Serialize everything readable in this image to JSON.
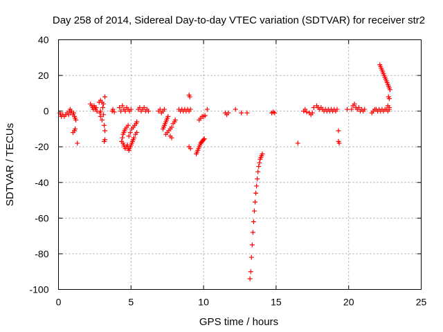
{
  "chart_data": {
    "type": "scatter",
    "title": "Day 258 of 2014, Sidereal Day-to-day VTEC variation (SDTVAR) for receiver str2",
    "xlabel": "GPS time / hours",
    "ylabel": "SDTVAR / TECUs",
    "xlim": [
      0,
      25
    ],
    "ylim": [
      -100,
      40
    ],
    "xticks": [
      0,
      5,
      10,
      15,
      20,
      25
    ],
    "yticks": [
      -100,
      -80,
      -60,
      -40,
      -20,
      0,
      20,
      40
    ],
    "grid": true,
    "marker": "plus",
    "color": "#ff0000",
    "series": [
      {
        "points": [
          [
            0.1,
            -1
          ],
          [
            0.15,
            -2
          ],
          [
            0.2,
            -3
          ],
          [
            0.3,
            -2
          ],
          [
            0.4,
            -3
          ],
          [
            0.5,
            -2
          ],
          [
            0.6,
            -1
          ],
          [
            0.7,
            -2
          ],
          [
            0.75,
            0
          ],
          [
            0.8,
            1
          ],
          [
            0.85,
            -1
          ],
          [
            0.9,
            0
          ],
          [
            1.0,
            -2
          ],
          [
            1.05,
            -1
          ],
          [
            1.1,
            -3
          ],
          [
            1.15,
            -4
          ],
          [
            1.2,
            -5
          ],
          [
            1.0,
            -12
          ],
          [
            1.1,
            -11
          ],
          [
            1.15,
            -10
          ],
          [
            1.3,
            -18
          ],
          [
            2.2,
            4
          ],
          [
            2.3,
            3
          ],
          [
            2.35,
            2
          ],
          [
            2.4,
            1
          ],
          [
            2.45,
            3
          ],
          [
            2.5,
            2
          ],
          [
            2.55,
            1
          ],
          [
            2.6,
            2
          ],
          [
            2.65,
            0
          ],
          [
            2.8,
            5
          ],
          [
            2.9,
            6
          ],
          [
            3.0,
            5
          ],
          [
            3.1,
            4
          ],
          [
            3.2,
            8
          ],
          [
            2.85,
            -1
          ],
          [
            2.9,
            -3
          ],
          [
            3.0,
            -5
          ],
          [
            3.1,
            -2
          ],
          [
            3.15,
            -8
          ],
          [
            3.2,
            -11
          ],
          [
            3.15,
            -17
          ],
          [
            3.2,
            -16
          ],
          [
            2.9,
            0
          ],
          [
            3.05,
            2
          ],
          [
            3.7,
            0
          ],
          [
            3.75,
            1
          ],
          [
            3.85,
            -0.5
          ],
          [
            4.2,
            2
          ],
          [
            4.3,
            0
          ],
          [
            4.4,
            3
          ],
          [
            4.5,
            1
          ],
          [
            4.6,
            0
          ],
          [
            4.7,
            2
          ],
          [
            4.8,
            1
          ],
          [
            4.9,
            0
          ],
          [
            5.0,
            1
          ],
          [
            4.35,
            -17
          ],
          [
            4.4,
            -15
          ],
          [
            4.45,
            -13
          ],
          [
            4.5,
            -12
          ],
          [
            4.55,
            -11
          ],
          [
            4.6,
            -10
          ],
          [
            4.7,
            -9
          ],
          [
            4.8,
            -8
          ],
          [
            4.45,
            -18
          ],
          [
            4.5,
            -19
          ],
          [
            4.55,
            -20
          ],
          [
            4.6,
            -21
          ],
          [
            4.7,
            -20
          ],
          [
            4.75,
            -19
          ],
          [
            4.8,
            -21
          ],
          [
            4.85,
            -22
          ],
          [
            4.9,
            -21
          ],
          [
            4.95,
            -20
          ],
          [
            5.0,
            -19
          ],
          [
            5.05,
            -18
          ],
          [
            5.1,
            -17
          ],
          [
            5.15,
            -16
          ],
          [
            5.2,
            -15
          ],
          [
            5.3,
            -13
          ],
          [
            5.4,
            -12
          ],
          [
            4.85,
            -14
          ],
          [
            4.95,
            -12
          ],
          [
            5.05,
            -10
          ],
          [
            5.15,
            -9
          ],
          [
            5.25,
            -8
          ],
          [
            5.35,
            -7
          ],
          [
            5.4,
            -6
          ],
          [
            5.5,
            1
          ],
          [
            5.6,
            2
          ],
          [
            5.7,
            0
          ],
          [
            5.8,
            1
          ],
          [
            5.9,
            2
          ],
          [
            6.0,
            0
          ],
          [
            6.1,
            1
          ],
          [
            6.2,
            0
          ],
          [
            6.9,
            0
          ],
          [
            7.0,
            1
          ],
          [
            7.1,
            -1
          ],
          [
            7.2,
            0
          ],
          [
            7.3,
            1
          ],
          [
            7.2,
            -10
          ],
          [
            7.25,
            -9
          ],
          [
            7.3,
            -8
          ],
          [
            7.35,
            -7
          ],
          [
            7.4,
            -6
          ],
          [
            7.45,
            -5
          ],
          [
            7.5,
            -4
          ],
          [
            7.55,
            -3
          ],
          [
            7.4,
            -13
          ],
          [
            7.5,
            -12
          ],
          [
            7.6,
            -11
          ],
          [
            7.7,
            -10
          ],
          [
            7.8,
            -9
          ],
          [
            7.9,
            -7
          ],
          [
            8.0,
            -6
          ],
          [
            8.05,
            -5
          ],
          [
            7.7,
            -14
          ],
          [
            7.8,
            -15
          ],
          [
            8.3,
            1
          ],
          [
            8.4,
            0
          ],
          [
            8.5,
            1
          ],
          [
            8.6,
            0
          ],
          [
            8.7,
            1
          ],
          [
            8.8,
            0
          ],
          [
            8.9,
            1
          ],
          [
            9.0,
            0
          ],
          [
            9.1,
            1
          ],
          [
            9.0,
            9
          ],
          [
            9.05,
            8
          ],
          [
            9.0,
            -20
          ],
          [
            9.1,
            -21
          ],
          [
            9.5,
            -24
          ],
          [
            9.55,
            -23
          ],
          [
            9.6,
            -22
          ],
          [
            9.65,
            -21
          ],
          [
            9.7,
            -20
          ],
          [
            9.75,
            -19
          ],
          [
            9.8,
            -18
          ],
          [
            9.85,
            -17.5
          ],
          [
            9.9,
            -17
          ],
          [
            9.95,
            -16.5
          ],
          [
            10.0,
            -16
          ],
          [
            10.05,
            -15.5
          ],
          [
            9.7,
            -5
          ],
          [
            9.8,
            -4
          ],
          [
            9.9,
            -3
          ],
          [
            10.0,
            -3
          ],
          [
            10.1,
            -2.5
          ],
          [
            10.25,
            1
          ],
          [
            11.5,
            -1
          ],
          [
            11.6,
            -2
          ],
          [
            11.7,
            -1
          ],
          [
            12.2,
            1
          ],
          [
            12.6,
            -1
          ],
          [
            13.0,
            -1
          ],
          [
            13.2,
            -94
          ],
          [
            13.25,
            -90
          ],
          [
            13.3,
            -82
          ],
          [
            13.35,
            -75
          ],
          [
            13.4,
            -68
          ],
          [
            13.45,
            -62
          ],
          [
            13.5,
            -56
          ],
          [
            13.55,
            -51
          ],
          [
            13.6,
            -46
          ],
          [
            13.65,
            -42
          ],
          [
            13.7,
            -38
          ],
          [
            13.75,
            -34
          ],
          [
            13.8,
            -31
          ],
          [
            13.85,
            -29
          ],
          [
            13.9,
            -27
          ],
          [
            13.95,
            -26
          ],
          [
            14.0,
            -25
          ],
          [
            14.05,
            -24
          ],
          [
            14.7,
            -1
          ],
          [
            14.8,
            -0.5
          ],
          [
            14.9,
            -1
          ],
          [
            16.5,
            -18
          ],
          [
            16.9,
            0
          ],
          [
            17.0,
            1
          ],
          [
            17.1,
            -0.5
          ],
          [
            17.3,
            -1
          ],
          [
            17.4,
            -2
          ],
          [
            17.5,
            -1
          ],
          [
            17.6,
            2
          ],
          [
            17.8,
            3
          ],
          [
            17.9,
            2
          ],
          [
            18.0,
            1
          ],
          [
            18.1,
            2
          ],
          [
            18.2,
            1
          ],
          [
            18.3,
            0
          ],
          [
            18.4,
            1
          ],
          [
            18.5,
            0
          ],
          [
            18.6,
            1
          ],
          [
            18.7,
            0
          ],
          [
            18.8,
            1
          ],
          [
            18.9,
            0
          ],
          [
            19.0,
            1
          ],
          [
            19.1,
            0
          ],
          [
            19.2,
            1
          ],
          [
            19.3,
            -11
          ],
          [
            19.3,
            -17
          ],
          [
            19.35,
            -18
          ],
          [
            19.9,
            1
          ],
          [
            20.2,
            1
          ],
          [
            20.3,
            3
          ],
          [
            20.4,
            4
          ],
          [
            20.5,
            2
          ],
          [
            20.6,
            1
          ],
          [
            20.7,
            2
          ],
          [
            20.8,
            0
          ],
          [
            20.9,
            1
          ],
          [
            21.0,
            0
          ],
          [
            21.1,
            1
          ],
          [
            21.6,
            -1
          ],
          [
            21.7,
            0
          ],
          [
            21.8,
            1
          ],
          [
            21.9,
            1
          ],
          [
            22.0,
            0
          ],
          [
            22.1,
            1
          ],
          [
            22.2,
            0
          ],
          [
            22.3,
            1
          ],
          [
            22.4,
            0
          ],
          [
            22.5,
            1
          ],
          [
            22.6,
            1
          ],
          [
            22.7,
            0
          ],
          [
            22.8,
            1
          ],
          [
            22.15,
            26
          ],
          [
            22.2,
            25
          ],
          [
            22.25,
            24
          ],
          [
            22.3,
            23
          ],
          [
            22.35,
            22
          ],
          [
            22.4,
            21
          ],
          [
            22.45,
            20
          ],
          [
            22.5,
            19
          ],
          [
            22.55,
            18
          ],
          [
            22.6,
            17
          ],
          [
            22.65,
            16
          ],
          [
            22.7,
            15
          ],
          [
            22.75,
            14
          ],
          [
            22.8,
            13
          ],
          [
            22.85,
            12
          ],
          [
            22.75,
            8
          ],
          [
            22.8,
            7
          ],
          [
            22.7,
            3
          ],
          [
            22.8,
            2
          ]
        ]
      }
    ]
  }
}
